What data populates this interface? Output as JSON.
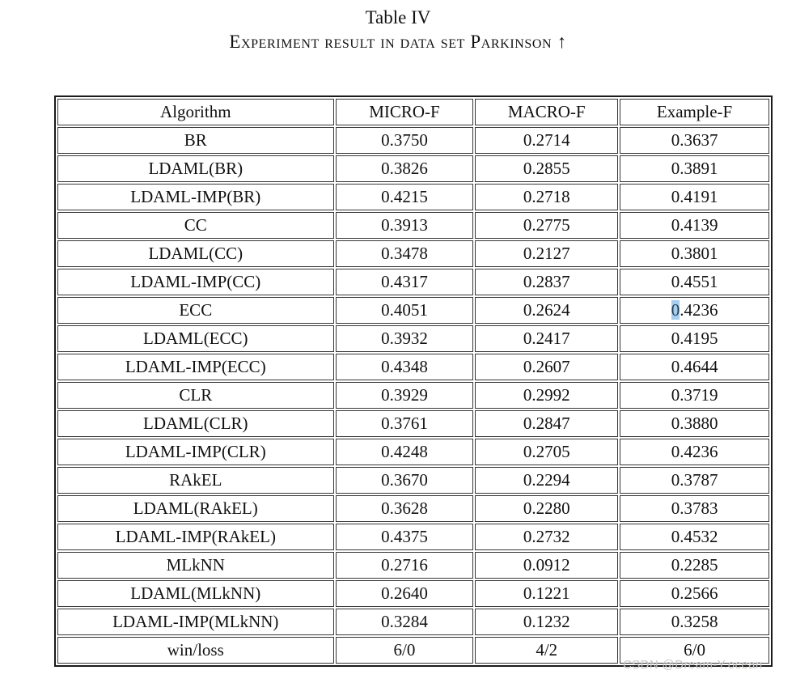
{
  "caption": {
    "label": "Table IV",
    "title": "Experiment result in data set Parkinson ↑"
  },
  "table": {
    "headers": [
      "Algorithm",
      "MICRO-F",
      "MACRO-F",
      "Example-F"
    ],
    "rows": [
      {
        "algorithm": "BR",
        "cells": [
          {
            "v": "0.3750"
          },
          {
            "v": "0.2714"
          },
          {
            "v": "0.3637"
          }
        ]
      },
      {
        "algorithm": "LDAML(BR)",
        "cells": [
          {
            "v": "0.3826"
          },
          {
            "v": "0.2855"
          },
          {
            "v": "0.3891"
          }
        ]
      },
      {
        "algorithm": "LDAML-IMP(BR)",
        "cells": [
          {
            "v": "0.4215"
          },
          {
            "v": "0.2718"
          },
          {
            "v": "0.4191"
          }
        ]
      },
      {
        "algorithm": "CC",
        "cells": [
          {
            "v": "0.3913"
          },
          {
            "v": "0.2775"
          },
          {
            "v": "0.4139"
          }
        ]
      },
      {
        "algorithm": "LDAML(CC)",
        "cells": [
          {
            "v": "0.3478"
          },
          {
            "v": "0.2127"
          },
          {
            "v": "0.3801"
          }
        ]
      },
      {
        "algorithm": "LDAML-IMP(CC)",
        "cells": [
          {
            "v": "0.4317"
          },
          {
            "v": "0.2837"
          },
          {
            "v": "0.4551"
          }
        ]
      },
      {
        "algorithm": "ECC",
        "cells": [
          {
            "v": "0.4051"
          },
          {
            "v": "0.2624"
          },
          {
            "v": "0.4236",
            "sel_chars": 1
          }
        ]
      },
      {
        "algorithm": "LDAML(ECC)",
        "cells": [
          {
            "v": "0.3932"
          },
          {
            "v": "0.2417"
          },
          {
            "v": "0.4195"
          }
        ]
      },
      {
        "algorithm": "LDAML-IMP(ECC)",
        "cells": [
          {
            "v": "0.4348"
          },
          {
            "v": "0.2607"
          },
          {
            "v": "0.4644",
            "bold": true
          }
        ]
      },
      {
        "algorithm": "CLR",
        "cells": [
          {
            "v": "0.3929"
          },
          {
            "v": "0.2992",
            "bold": true
          },
          {
            "v": "0.3719"
          }
        ]
      },
      {
        "algorithm": "LDAML(CLR)",
        "cells": [
          {
            "v": "0.3761"
          },
          {
            "v": "0.2847"
          },
          {
            "v": "0.3880"
          }
        ]
      },
      {
        "algorithm": "LDAML-IMP(CLR)",
        "cells": [
          {
            "v": "0.4248"
          },
          {
            "v": "0.2705"
          },
          {
            "v": "0.4236"
          }
        ]
      },
      {
        "algorithm": "RAkEL",
        "cells": [
          {
            "v": "0.3670"
          },
          {
            "v": "0.2294"
          },
          {
            "v": "0.3787"
          }
        ]
      },
      {
        "algorithm": "LDAML(RAkEL)",
        "cells": [
          {
            "v": "0.3628"
          },
          {
            "v": "0.2280"
          },
          {
            "v": "0.3783"
          }
        ]
      },
      {
        "algorithm": "LDAML-IMP(RAkEL)",
        "cells": [
          {
            "v": "0.4375",
            "bold": true
          },
          {
            "v": "0.2732"
          },
          {
            "v": "0.4532"
          }
        ]
      },
      {
        "algorithm": "MLkNN",
        "cells": [
          {
            "v": "0.2716"
          },
          {
            "v": "0.0912"
          },
          {
            "v": "0.2285"
          }
        ]
      },
      {
        "algorithm": "LDAML(MLkNN)",
        "cells": [
          {
            "v": "0.2640"
          },
          {
            "v": "0.1221"
          },
          {
            "v": "0.2566"
          }
        ]
      },
      {
        "algorithm": "LDAML-IMP(MLkNN)",
        "cells": [
          {
            "v": "0.3284"
          },
          {
            "v": "0.1232"
          },
          {
            "v": "0.3258"
          }
        ]
      },
      {
        "algorithm": "win/loss",
        "cells": [
          {
            "v": "6/0",
            "bold": true
          },
          {
            "v": "4/2",
            "bold": true
          },
          {
            "v": "6/0",
            "bold": true
          }
        ]
      }
    ]
  },
  "watermark": {
    "text": "CSDN @Dream-Y.ocean"
  },
  "colors": {
    "selection_highlight": "#a9cdec",
    "selection_text": "#223d57",
    "border": "#373737",
    "text": "#111111",
    "watermark": "#c7c7c5"
  }
}
